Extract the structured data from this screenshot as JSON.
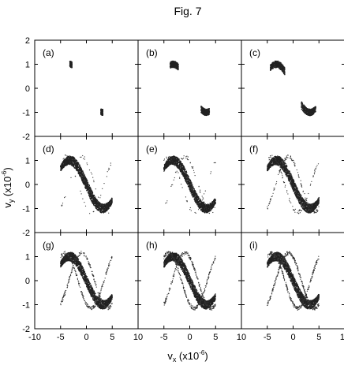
{
  "figure": {
    "title": "Fig. 7",
    "xlabel_main": "v",
    "xlabel_sub": "x",
    "xlabel_scale": " (x10",
    "xlabel_exp": "-6",
    "xlabel_close": ")",
    "ylabel_main": "v",
    "ylabel_sub": "y",
    "ylabel_scale": " (x10",
    "ylabel_exp": "-6",
    "ylabel_close": ")"
  },
  "chart_data": {
    "type": "scatter",
    "description_of_layout": "3x3 grid of phase-space panels",
    "xlim": [
      -10,
      10
    ],
    "ylim": [
      -2,
      2
    ],
    "x_ticks": [
      "-10",
      "-5",
      "0",
      "5",
      "10"
    ],
    "y_ticks": [
      "2",
      "1",
      "0",
      "-1",
      "-2"
    ],
    "panels": [
      {
        "label": "(a)",
        "extent": 0.05,
        "wave": 0.0
      },
      {
        "label": "(b)",
        "extent": 0.2,
        "wave": 0.0
      },
      {
        "label": "(c)",
        "extent": 0.35,
        "wave": 0.0
      },
      {
        "label": "(d)",
        "extent": 1.0,
        "wave": 0.1
      },
      {
        "label": "(e)",
        "extent": 1.0,
        "wave": 0.15
      },
      {
        "label": "(f)",
        "extent": 1.0,
        "wave": 0.35
      },
      {
        "label": "(g)",
        "extent": 1.0,
        "wave": 0.7
      },
      {
        "label": "(h)",
        "extent": 1.0,
        "wave": 0.85
      },
      {
        "label": "(i)",
        "extent": 1.0,
        "wave": 1.0
      }
    ]
  }
}
